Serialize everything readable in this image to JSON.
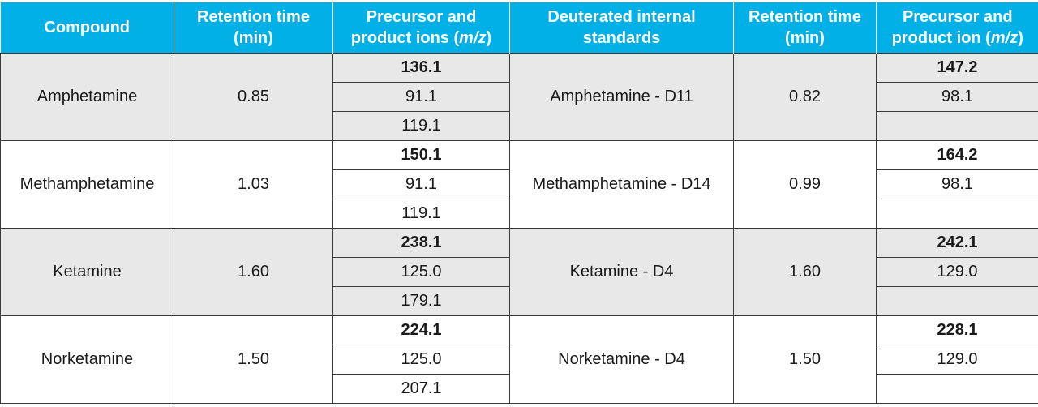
{
  "headers": {
    "compound": "Compound",
    "rt1": [
      "Retention time",
      "(min)"
    ],
    "ions1": [
      "Precursor and",
      "product ions (",
      "m/z",
      ")"
    ],
    "standards": [
      "Deuterated internal",
      "standards"
    ],
    "rt2": [
      "Retention time",
      "(min)"
    ],
    "ions2": [
      "Precursor and",
      "product ion (",
      "m/z",
      ")"
    ]
  },
  "rows": [
    {
      "compound": "Amphetamine",
      "rt": "0.85",
      "ions": [
        "136.1",
        "91.1",
        "119.1"
      ],
      "standard": "Amphetamine - D11",
      "std_rt": "0.82",
      "std_ions": [
        "147.2",
        "98.1",
        ""
      ]
    },
    {
      "compound": "Methamphetamine",
      "rt": "1.03",
      "ions": [
        "150.1",
        "91.1",
        "119.1"
      ],
      "standard": "Methamphetamine - D14",
      "std_rt": "0.99",
      "std_ions": [
        "164.2",
        "98.1",
        ""
      ]
    },
    {
      "compound": "Ketamine",
      "rt": "1.60",
      "ions": [
        "238.1",
        "125.0",
        "179.1"
      ],
      "standard": "Ketamine - D4",
      "std_rt": "1.60",
      "std_ions": [
        "242.1",
        "129.0",
        ""
      ]
    },
    {
      "compound": "Norketamine",
      "rt": "1.50",
      "ions": [
        "224.1",
        "125.0",
        "207.1"
      ],
      "standard": "Norketamine - D4",
      "std_rt": "1.50",
      "std_ions": [
        "228.1",
        "129.0",
        ""
      ]
    }
  ]
}
